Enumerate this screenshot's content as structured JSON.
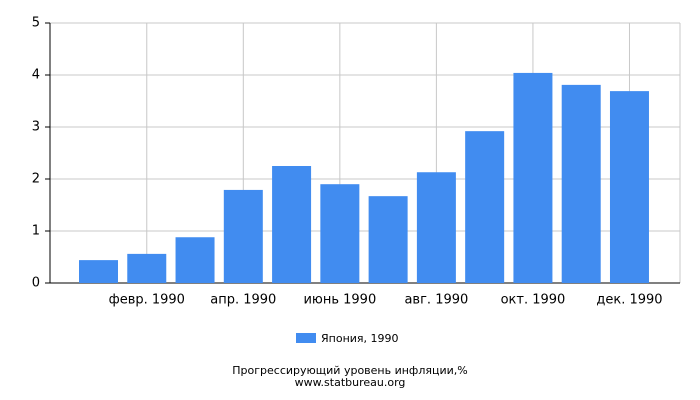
{
  "chart_data": {
    "type": "bar",
    "title": "Прогрессирующий уровень инфляции,%",
    "source": "www.statbureau.org",
    "categories": [
      null,
      "февр. 1990",
      null,
      "апр. 1990",
      null,
      "июнь 1990",
      null,
      "авг. 1990",
      null,
      "окт. 1990",
      null,
      "дек. 1990"
    ],
    "series": [
      {
        "name": "Япония, 1990",
        "color": "#418cf0",
        "values": [
          0.44,
          0.56,
          0.88,
          1.79,
          2.25,
          1.9,
          1.67,
          2.13,
          2.92,
          4.04,
          3.81,
          3.69
        ]
      }
    ],
    "ylim": [
      0,
      5
    ],
    "yticks": [
      0,
      1,
      2,
      3,
      4,
      5
    ],
    "grid": true
  }
}
